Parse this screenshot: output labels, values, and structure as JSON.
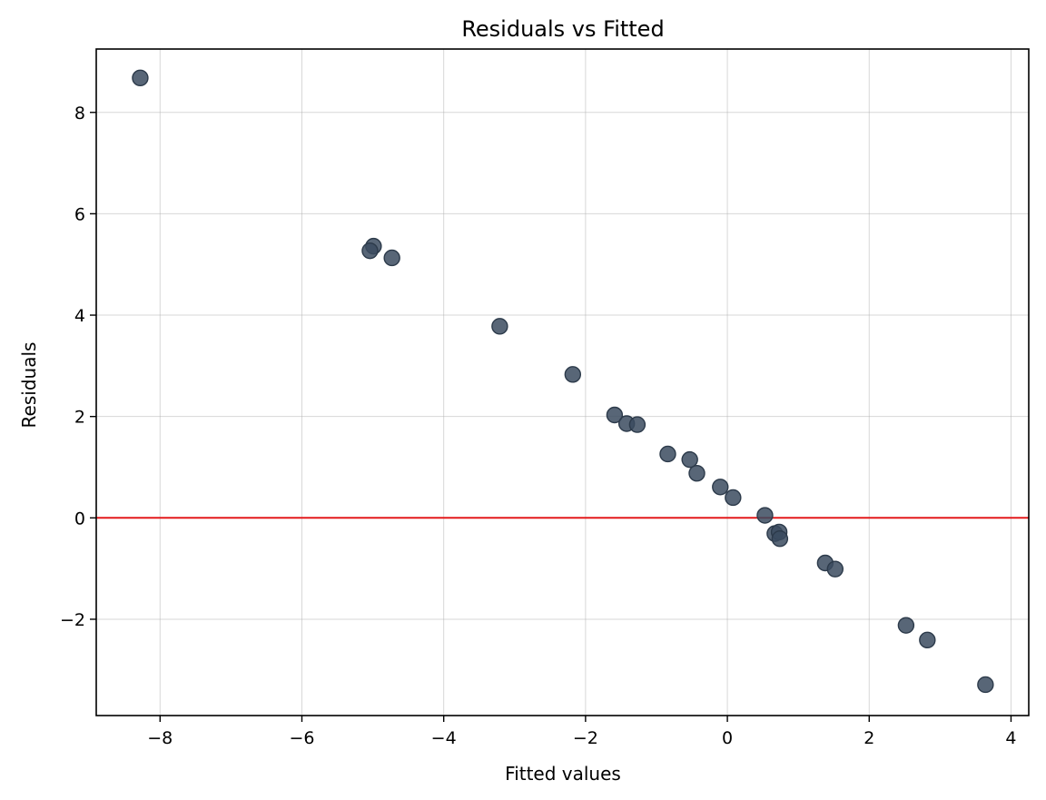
{
  "chart_data": {
    "type": "scatter",
    "title": "Residuals vs Fitted",
    "xlabel": "Fitted values",
    "ylabel": "Residuals",
    "xlim": [
      -8.9,
      4.25
    ],
    "ylim": [
      -3.9,
      9.25
    ],
    "x_ticks": [
      -8,
      -6,
      -4,
      -2,
      0,
      2,
      4
    ],
    "x_tick_labels": [
      "−8",
      "−6",
      "−4",
      "−2",
      "0",
      "2",
      "4"
    ],
    "y_ticks": [
      -2,
      0,
      2,
      4,
      6,
      8
    ],
    "y_tick_labels": [
      "−2",
      "0",
      "2",
      "4",
      "6",
      "8"
    ],
    "grid": true,
    "reference_line": {
      "y": 0,
      "color": "#e31a1c"
    },
    "marker_color": "#3b4b5f",
    "points": [
      {
        "x": -8.28,
        "y": 8.68
      },
      {
        "x": -4.99,
        "y": 5.36
      },
      {
        "x": -5.04,
        "y": 5.27
      },
      {
        "x": -4.73,
        "y": 5.13
      },
      {
        "x": -3.21,
        "y": 3.78
      },
      {
        "x": -2.18,
        "y": 2.83
      },
      {
        "x": -1.59,
        "y": 2.03
      },
      {
        "x": -1.42,
        "y": 1.86
      },
      {
        "x": -1.27,
        "y": 1.84
      },
      {
        "x": -0.84,
        "y": 1.26
      },
      {
        "x": -0.53,
        "y": 1.15
      },
      {
        "x": -0.43,
        "y": 0.88
      },
      {
        "x": -0.1,
        "y": 0.61
      },
      {
        "x": 0.08,
        "y": 0.4
      },
      {
        "x": 0.53,
        "y": 0.05
      },
      {
        "x": 0.67,
        "y": -0.31
      },
      {
        "x": 0.73,
        "y": -0.28
      },
      {
        "x": 0.74,
        "y": -0.41
      },
      {
        "x": 1.38,
        "y": -0.89
      },
      {
        "x": 1.52,
        "y": -1.01
      },
      {
        "x": 2.52,
        "y": -2.12
      },
      {
        "x": 2.82,
        "y": -2.41
      },
      {
        "x": 3.64,
        "y": -3.29
      }
    ]
  }
}
